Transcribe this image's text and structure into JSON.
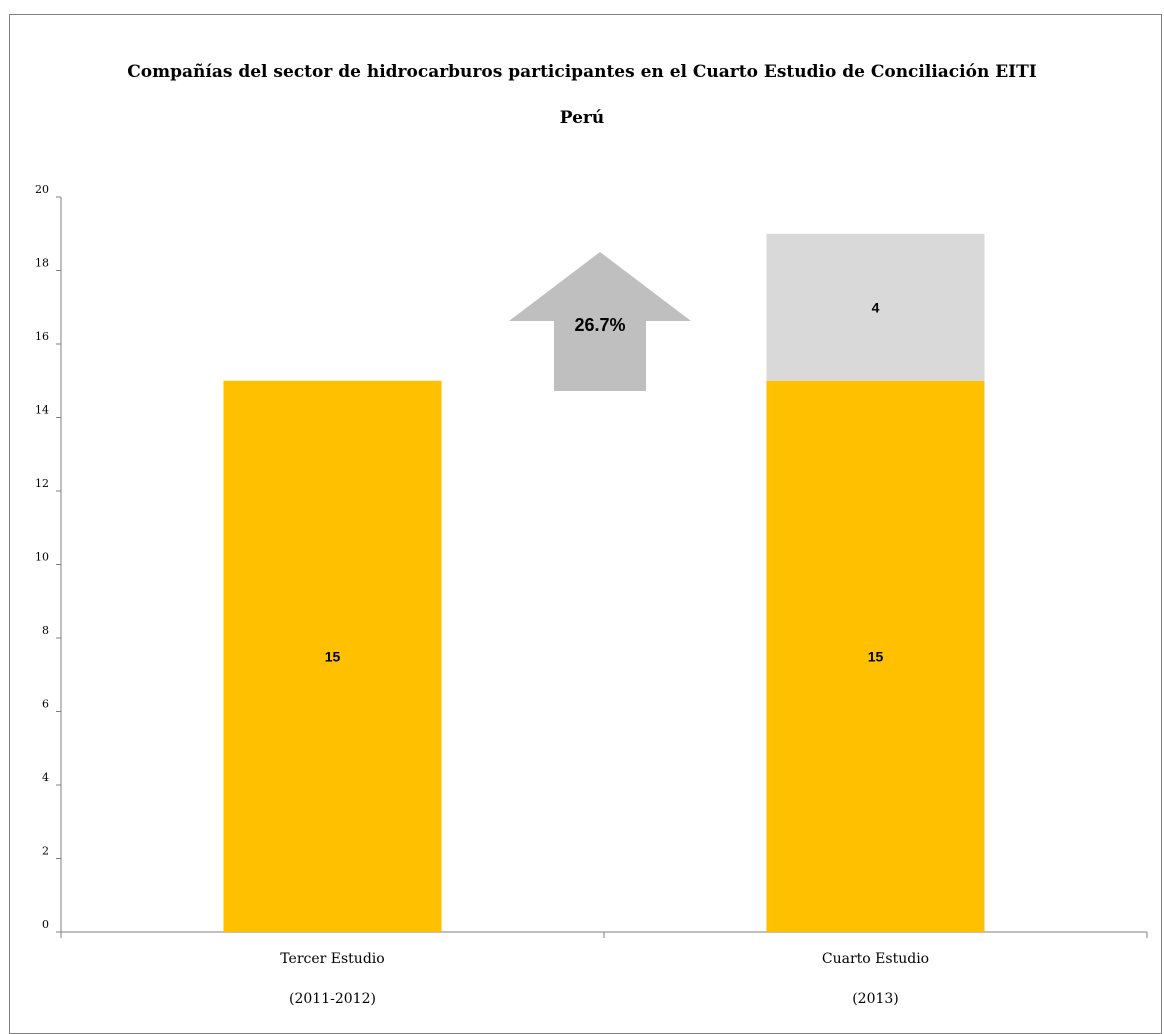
{
  "chart_data": {
    "type": "bar",
    "stacked": true,
    "title": "Compañías del sector de hidrocarburos participantes en el Cuarto Estudio de Conciliación EITI",
    "subtitle": "Perú",
    "categories": [
      [
        "Tercer Estudio",
        "(2011-2012)"
      ],
      [
        "Cuarto Estudio",
        "(2013)"
      ]
    ],
    "series": [
      {
        "values": [
          15,
          15
        ],
        "color": "#FFC000"
      },
      {
        "values": [
          0,
          4
        ],
        "color": "#D9D9D9"
      }
    ],
    "data_labels": [
      [
        "15",
        "15"
      ],
      [
        "",
        "4"
      ]
    ],
    "ylim": [
      0,
      20
    ],
    "yticks": [
      0,
      2,
      4,
      6,
      8,
      10,
      12,
      14,
      16,
      18,
      20
    ],
    "grid": false,
    "legend": "none",
    "annotation": {
      "shape": "up-arrow",
      "text": "26.7%",
      "color": "#BFBFBF"
    }
  }
}
